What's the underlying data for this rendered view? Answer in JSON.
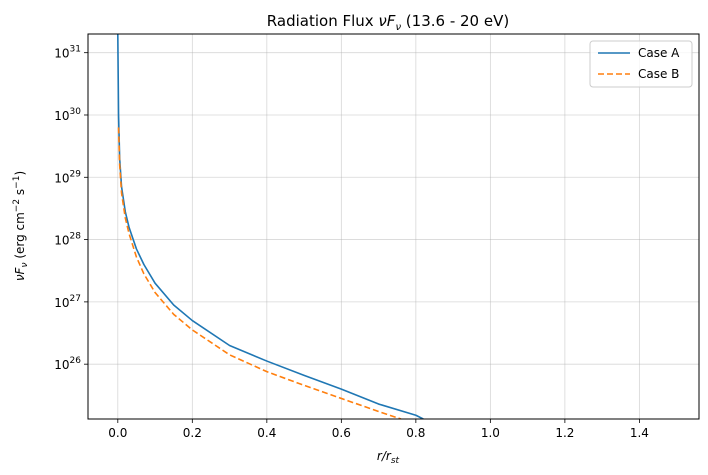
{
  "chart_data": {
    "type": "line",
    "title": "Radiation Flux νFν (13.6 - 20 eV)",
    "title_parts": {
      "main": "Radiation Flux ",
      "var": "νF",
      "sub": "ν",
      "tail": " (13.6 - 20 eV)"
    },
    "xlabel": "r/r",
    "xlabel_sub": "st",
    "ylabel_parts": {
      "var": "νF",
      "sub": "ν",
      "units": " (erg cm",
      "exp1": "−2",
      "mid": " s",
      "exp2": "−1",
      "end": ")"
    },
    "xlim": [
      -0.08,
      1.56
    ],
    "ylim_log10": [
      25.12,
      31.3
    ],
    "xticks": [
      0.0,
      0.2,
      0.4,
      0.6,
      0.8,
      1.0,
      1.2,
      1.4
    ],
    "xtick_labels": [
      "0.0",
      "0.2",
      "0.4",
      "0.6",
      "0.8",
      "1.0",
      "1.2",
      "1.4"
    ],
    "yticks_log10": [
      26,
      27,
      28,
      29,
      30,
      31
    ],
    "ytick_base": "10",
    "ytick_exps": [
      "26",
      "27",
      "28",
      "29",
      "30",
      "31"
    ],
    "grid": true,
    "legend": "top-right",
    "series": [
      {
        "name": "Case A",
        "color": "#1f77b4",
        "dash": "solid",
        "x": [
          0.0,
          0.002,
          0.005,
          0.01,
          0.02,
          0.03,
          0.05,
          0.07,
          0.1,
          0.15,
          0.2,
          0.3,
          0.4,
          0.5,
          0.6,
          0.7,
          0.8,
          0.82
        ],
        "log10_y": [
          31.3,
          30.0,
          29.3,
          28.85,
          28.45,
          28.2,
          27.85,
          27.6,
          27.3,
          26.95,
          26.7,
          26.3,
          26.05,
          25.82,
          25.6,
          25.36,
          25.18,
          25.12
        ]
      },
      {
        "name": "Case B",
        "color": "#ff7f0e",
        "dash": "dashed",
        "x": [
          0.002,
          0.005,
          0.01,
          0.02,
          0.03,
          0.05,
          0.07,
          0.1,
          0.15,
          0.2,
          0.3,
          0.4,
          0.5,
          0.6,
          0.7,
          0.76
        ],
        "log10_y": [
          29.8,
          29.2,
          28.75,
          28.35,
          28.1,
          27.72,
          27.45,
          27.15,
          26.8,
          26.55,
          26.15,
          25.88,
          25.66,
          25.45,
          25.24,
          25.12
        ]
      }
    ]
  }
}
